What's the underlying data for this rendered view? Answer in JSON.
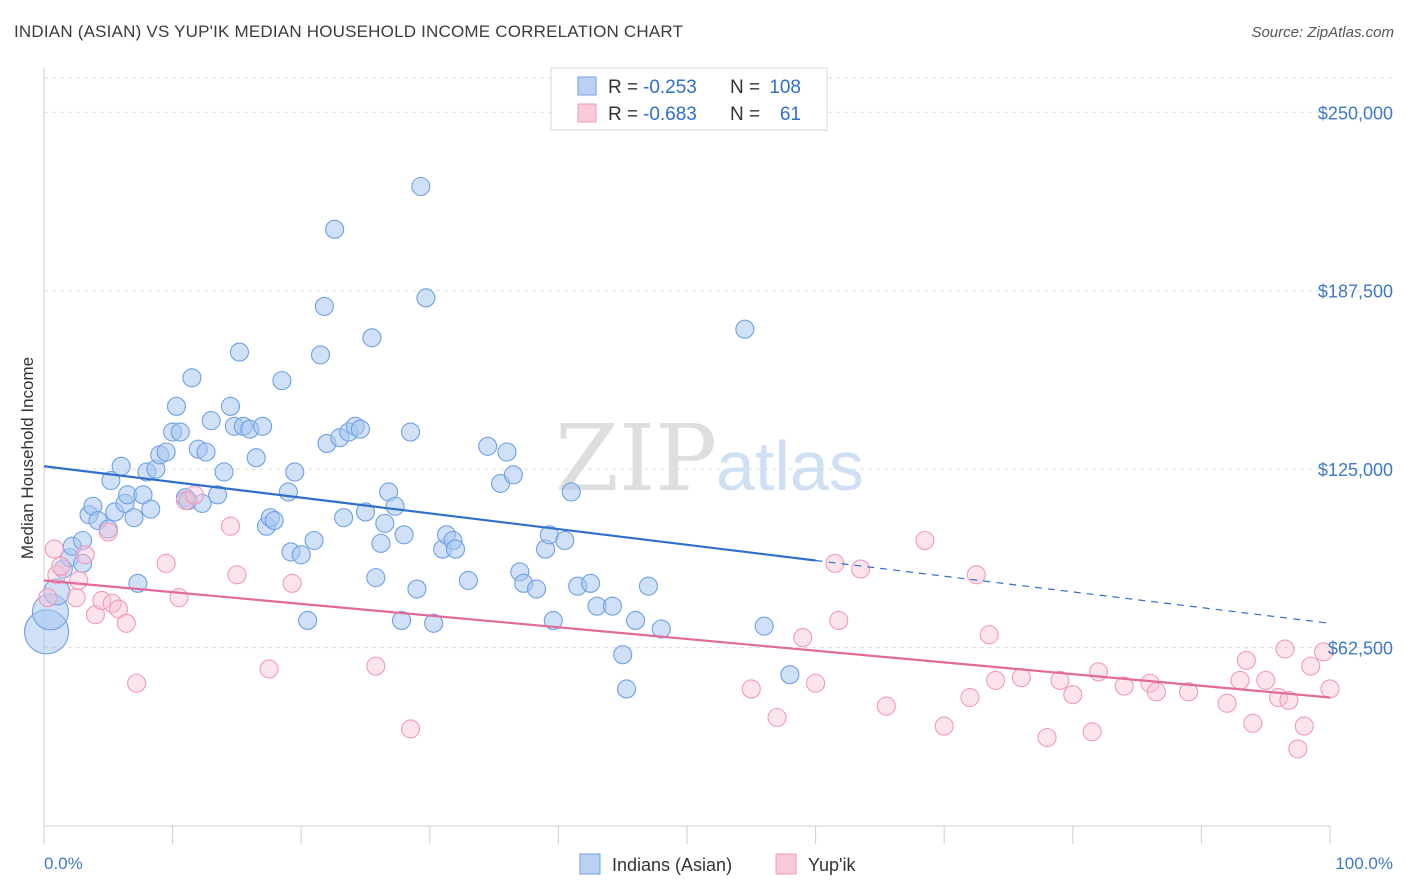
{
  "title": "INDIAN (ASIAN) VS YUP'IK MEDIAN HOUSEHOLD INCOME CORRELATION CHART",
  "source": "Source: ZipAtlas.com",
  "watermark": {
    "zip": "ZIP",
    "atlas": "atlas"
  },
  "colors": {
    "blue": "#6fa0e6",
    "blue_line": "#2f6fcc",
    "pink": "#f29ab8",
    "pink_line": "#e26a99",
    "tick_text": "#3f78c8"
  },
  "legend": {
    "rows": [
      {
        "r_label": "R =",
        "r_value": "-0.253",
        "n_label": "N =",
        "n_value": "108"
      },
      {
        "r_label": "R =",
        "r_value": "-0.683",
        "n_label": "N =",
        "n_value": "61"
      }
    ]
  },
  "bottom_legend": [
    "Indians (Asian)",
    "Yup'ik"
  ],
  "chart_data": {
    "type": "scatter",
    "xlabel": "",
    "ylabel": "Median Household Income",
    "xlim": [
      0,
      100
    ],
    "ylim": [
      0,
      262000
    ],
    "x_tick_labels": [
      "0.0%",
      "100.0%"
    ],
    "y_ticks": [
      62500,
      125000,
      187500,
      250000
    ],
    "y_tick_labels": [
      "$62,500",
      "$125,000",
      "$187,500",
      "$250,000"
    ],
    "grid": true,
    "series": [
      {
        "name": "Indians (Asian)",
        "trend": {
          "x0": 0,
          "y0": 126000,
          "x1": 60,
          "y1": 93000,
          "dash_x1": 100,
          "dash_y1": 71000
        },
        "points": [
          [
            0.2,
            68000
          ],
          [
            0.5,
            75000
          ],
          [
            1.0,
            82000
          ],
          [
            1.5,
            90000
          ],
          [
            2.0,
            94000
          ],
          [
            2.2,
            98000
          ],
          [
            3.0,
            92000
          ],
          [
            3.0,
            100000
          ],
          [
            3.5,
            109000
          ],
          [
            3.8,
            112000
          ],
          [
            4.2,
            107000
          ],
          [
            5.0,
            104000
          ],
          [
            5.2,
            121000
          ],
          [
            5.5,
            110000
          ],
          [
            6.0,
            126000
          ],
          [
            6.3,
            113000
          ],
          [
            6.5,
            116000
          ],
          [
            7.0,
            108000
          ],
          [
            7.3,
            85000
          ],
          [
            7.7,
            116000
          ],
          [
            8.0,
            124000
          ],
          [
            8.3,
            111000
          ],
          [
            8.7,
            125000
          ],
          [
            9.0,
            130000
          ],
          [
            9.5,
            131000
          ],
          [
            10.0,
            138000
          ],
          [
            10.3,
            147000
          ],
          [
            10.6,
            138000
          ],
          [
            11.0,
            115000
          ],
          [
            11.2,
            114000
          ],
          [
            11.5,
            157000
          ],
          [
            12.0,
            132000
          ],
          [
            12.3,
            113000
          ],
          [
            12.6,
            131000
          ],
          [
            13.0,
            142000
          ],
          [
            13.5,
            116000
          ],
          [
            14.0,
            124000
          ],
          [
            14.5,
            147000
          ],
          [
            14.8,
            140000
          ],
          [
            15.2,
            166000
          ],
          [
            15.5,
            140000
          ],
          [
            16.0,
            139000
          ],
          [
            16.5,
            129000
          ],
          [
            17.0,
            140000
          ],
          [
            17.3,
            105000
          ],
          [
            17.6,
            108000
          ],
          [
            17.9,
            107000
          ],
          [
            18.5,
            156000
          ],
          [
            19.0,
            117000
          ],
          [
            19.2,
            96000
          ],
          [
            19.5,
            124000
          ],
          [
            20.0,
            95000
          ],
          [
            20.5,
            72000
          ],
          [
            21.0,
            100000
          ],
          [
            21.5,
            165000
          ],
          [
            21.8,
            182000
          ],
          [
            22.0,
            134000
          ],
          [
            22.6,
            209000
          ],
          [
            23.0,
            136000
          ],
          [
            23.3,
            108000
          ],
          [
            23.7,
            138000
          ],
          [
            24.2,
            140000
          ],
          [
            24.6,
            139000
          ],
          [
            25.0,
            110000
          ],
          [
            25.5,
            171000
          ],
          [
            25.8,
            87000
          ],
          [
            26.2,
            99000
          ],
          [
            26.5,
            106000
          ],
          [
            26.8,
            117000
          ],
          [
            27.3,
            112000
          ],
          [
            27.8,
            72000
          ],
          [
            28.0,
            102000
          ],
          [
            28.5,
            138000
          ],
          [
            29.0,
            83000
          ],
          [
            29.3,
            224000
          ],
          [
            29.7,
            185000
          ],
          [
            30.3,
            71000
          ],
          [
            31.0,
            97000
          ],
          [
            31.3,
            102000
          ],
          [
            31.8,
            100000
          ],
          [
            32.0,
            97000
          ],
          [
            33.0,
            86000
          ],
          [
            34.5,
            133000
          ],
          [
            35.5,
            120000
          ],
          [
            36.0,
            131000
          ],
          [
            36.5,
            123000
          ],
          [
            37.0,
            89000
          ],
          [
            37.3,
            85000
          ],
          [
            38.3,
            83000
          ],
          [
            39.0,
            97000
          ],
          [
            39.3,
            102000
          ],
          [
            39.6,
            72000
          ],
          [
            40.5,
            100000
          ],
          [
            41.0,
            117000
          ],
          [
            41.5,
            84000
          ],
          [
            42.5,
            85000
          ],
          [
            43.0,
            77000
          ],
          [
            44.2,
            77000
          ],
          [
            45.0,
            60000
          ],
          [
            45.3,
            48000
          ],
          [
            46.0,
            72000
          ],
          [
            47.0,
            84000
          ],
          [
            48.0,
            69000
          ],
          [
            54.5,
            174000
          ],
          [
            56.0,
            70000
          ],
          [
            58.0,
            53000
          ]
        ],
        "sizes": {
          "0": 22,
          "1": 18,
          "2": 13
        }
      },
      {
        "name": "Yup'ik",
        "trend": {
          "x0": 0,
          "y0": 86000,
          "x1": 100,
          "y1": 45000
        },
        "points": [
          [
            0.3,
            80000
          ],
          [
            1.0,
            88000
          ],
          [
            1.3,
            91000
          ],
          [
            2.5,
            80000
          ],
          [
            2.7,
            86000
          ],
          [
            3.2,
            95000
          ],
          [
            4.0,
            74000
          ],
          [
            4.5,
            79000
          ],
          [
            5.0,
            103000
          ],
          [
            5.3,
            78000
          ],
          [
            5.8,
            76000
          ],
          [
            6.4,
            71000
          ],
          [
            7.2,
            50000
          ],
          [
            9.5,
            92000
          ],
          [
            10.5,
            80000
          ],
          [
            11.0,
            114000
          ],
          [
            11.7,
            116000
          ],
          [
            14.5,
            105000
          ],
          [
            15.0,
            88000
          ],
          [
            17.5,
            55000
          ],
          [
            19.3,
            85000
          ],
          [
            25.8,
            56000
          ],
          [
            28.5,
            34000
          ],
          [
            55.0,
            48000
          ],
          [
            57.0,
            38000
          ],
          [
            59.0,
            66000
          ],
          [
            60.0,
            50000
          ],
          [
            61.5,
            92000
          ],
          [
            61.8,
            72000
          ],
          [
            63.5,
            90000
          ],
          [
            65.5,
            42000
          ],
          [
            68.5,
            100000
          ],
          [
            70.0,
            35000
          ],
          [
            72.0,
            45000
          ],
          [
            72.5,
            88000
          ],
          [
            73.5,
            67000
          ],
          [
            74.0,
            51000
          ],
          [
            76.0,
            52000
          ],
          [
            78.0,
            31000
          ],
          [
            79.0,
            51000
          ],
          [
            80.0,
            46000
          ],
          [
            81.5,
            33000
          ],
          [
            82.0,
            54000
          ],
          [
            84.0,
            49000
          ],
          [
            86.0,
            50000
          ],
          [
            86.5,
            47000
          ],
          [
            89.0,
            47000
          ],
          [
            92.0,
            43000
          ],
          [
            93.0,
            51000
          ],
          [
            93.5,
            58000
          ],
          [
            94.0,
            36000
          ],
          [
            95.0,
            51000
          ],
          [
            96.0,
            45000
          ],
          [
            96.5,
            62000
          ],
          [
            96.8,
            44000
          ],
          [
            97.5,
            27000
          ],
          [
            98.0,
            35000
          ],
          [
            98.5,
            56000
          ],
          [
            99.5,
            61000
          ],
          [
            100.0,
            48000
          ],
          [
            0.8,
            97000
          ]
        ]
      }
    ]
  }
}
